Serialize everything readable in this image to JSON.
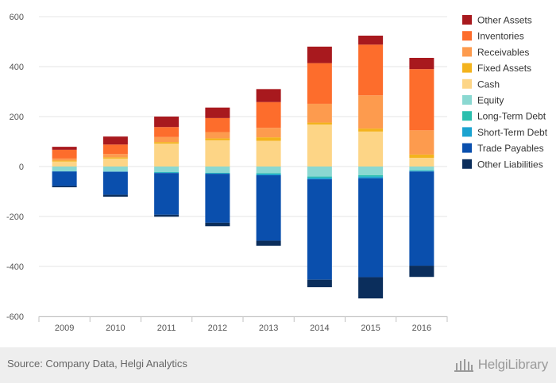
{
  "chart_data": {
    "type": "bar",
    "stacked": true,
    "categories": [
      "2009",
      "2010",
      "2011",
      "2012",
      "2013",
      "2014",
      "2015",
      "2016"
    ],
    "ylim": [
      -600,
      600
    ],
    "yticks": [
      -600,
      -400,
      -200,
      0,
      200,
      400,
      600
    ],
    "ytick_labels": [
      "-600",
      "-400",
      "-200",
      "0",
      "200",
      "400",
      "600"
    ],
    "legend_position": "right",
    "grid": true,
    "series": [
      {
        "name": "Other Assets",
        "side": "assets",
        "color": "#a8191e",
        "values": [
          12,
          32,
          42,
          42,
          52,
          66,
          36,
          45
        ]
      },
      {
        "name": "Inventories",
        "side": "assets",
        "color": "#fd6d2c",
        "values": [
          35,
          38,
          40,
          56,
          103,
          163,
          203,
          245
        ]
      },
      {
        "name": "Receivables",
        "side": "assets",
        "color": "#fd9b4e",
        "values": [
          8,
          13,
          20,
          25,
          38,
          75,
          133,
          97
        ]
      },
      {
        "name": "Fixed Assets",
        "side": "assets",
        "color": "#f3b31d",
        "values": [
          4,
          5,
          6,
          8,
          14,
          8,
          12,
          13
        ]
      },
      {
        "name": "Cash",
        "side": "assets",
        "color": "#fdd586",
        "values": [
          20,
          32,
          92,
          105,
          103,
          168,
          140,
          35
        ]
      },
      {
        "name": "Equity",
        "side": "liabilities",
        "color": "#8ad8d1",
        "values": [
          -19,
          -20,
          -22,
          -25,
          -27,
          -40,
          -35,
          -15
        ]
      },
      {
        "name": "Long-Term Debt",
        "side": "liabilities",
        "color": "#2cbfae",
        "values": [
          0,
          0,
          -2,
          -2,
          -3,
          -5,
          -5,
          -2
        ]
      },
      {
        "name": "Short-Term Debt",
        "side": "liabilities",
        "color": "#1ba3d0",
        "values": [
          -1,
          -1,
          -2,
          -2,
          -5,
          -6,
          -7,
          -3
        ]
      },
      {
        "name": "Trade Payables",
        "side": "liabilities",
        "color": "#0a4fad",
        "values": [
          -58,
          -92,
          -167,
          -196,
          -262,
          -402,
          -396,
          -377
        ]
      },
      {
        "name": "Other Liabilities",
        "side": "liabilities",
        "color": "#0b2e5c",
        "values": [
          -5,
          -8,
          -8,
          -14,
          -20,
          -30,
          -85,
          -45
        ]
      }
    ]
  },
  "footer": {
    "source": "Source: Company Data, Helgi Analytics",
    "brand": "HelgiLibrary"
  }
}
